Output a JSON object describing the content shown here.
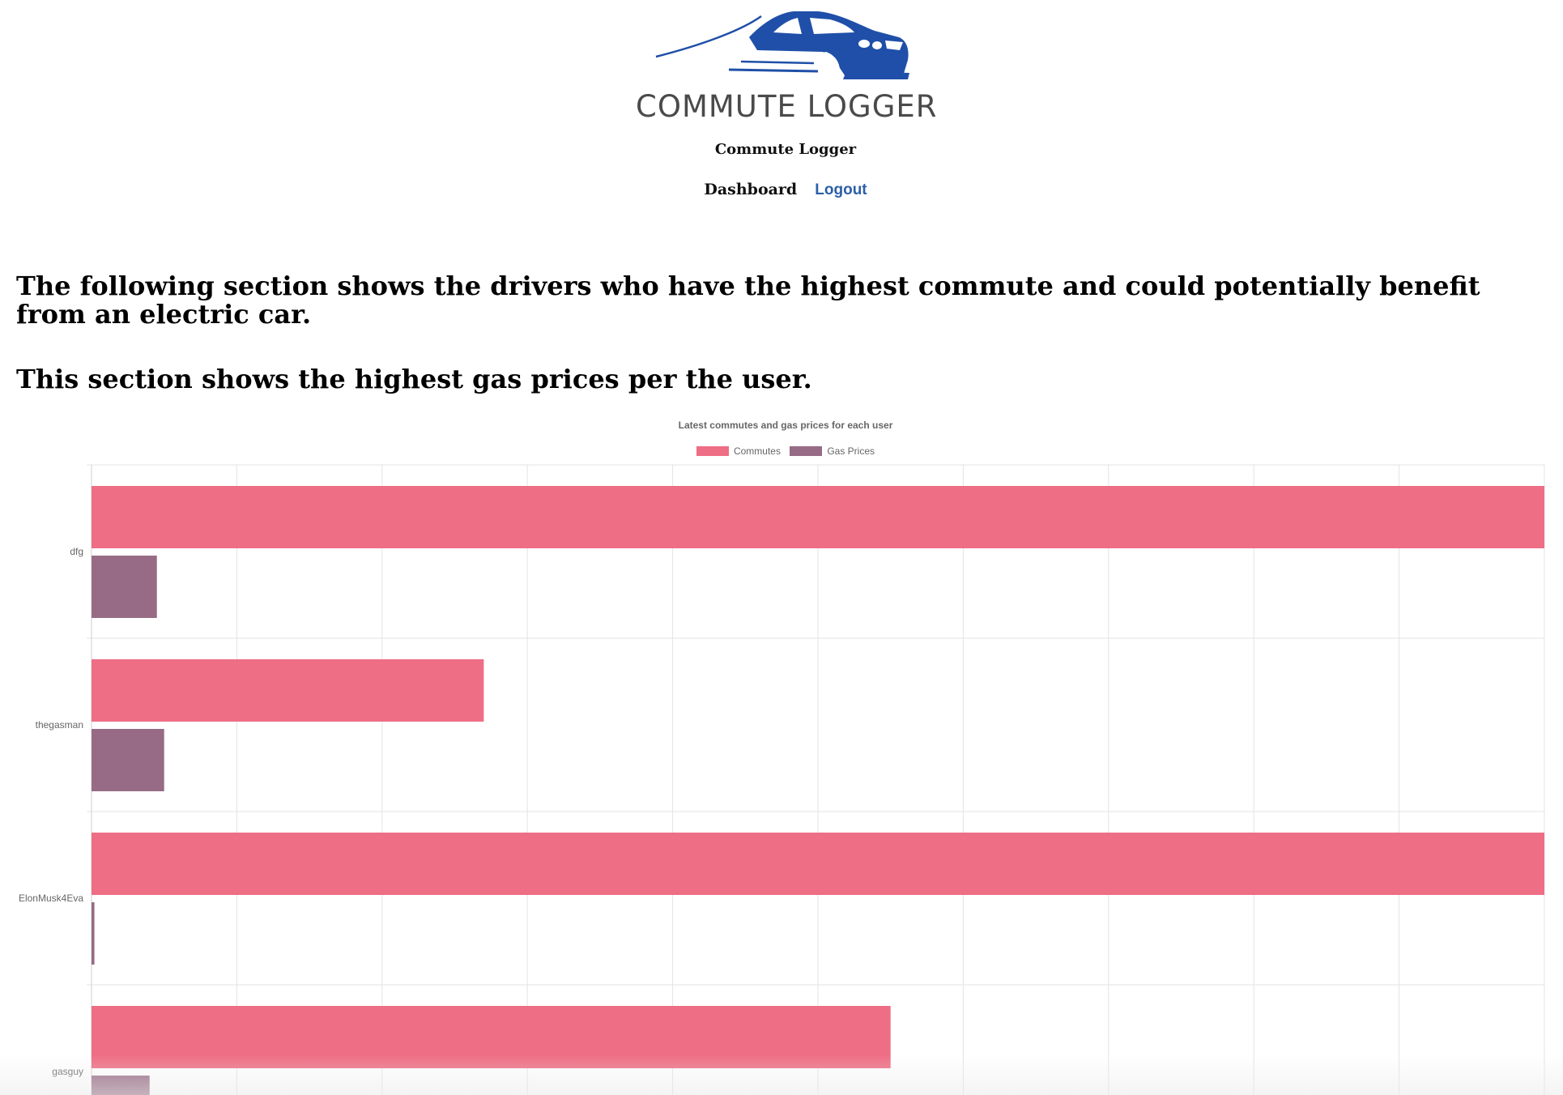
{
  "brand": {
    "logo_text": "COMMUTE LOGGER",
    "site_title": "Commute Logger",
    "logo_color": "#1f4fa8"
  },
  "nav": {
    "items": [
      {
        "label": "Dashboard"
      },
      {
        "label": "Logout"
      }
    ]
  },
  "headings": {
    "section1": "The following section shows the drivers who have the highest commute and could potentially benefit from an electric car.",
    "section2": "This section shows the highest gas prices per the user."
  },
  "chart_data": {
    "type": "bar",
    "orientation": "horizontal",
    "title": "Latest commutes and gas prices for each user",
    "legend_position": "top",
    "grid": true,
    "categories": [
      "dfg",
      "thegasman",
      "ElonMusk4Eva",
      "gasguy"
    ],
    "series": [
      {
        "name": "Commutes",
        "color": "#ee6e85",
        "values": [
          10,
          2.7,
          10,
          5.5
        ]
      },
      {
        "name": "Gas Prices",
        "color": "#976b85",
        "values": [
          0.45,
          0.5,
          0.02,
          0.4
        ]
      }
    ],
    "xlim": [
      0,
      10
    ]
  }
}
